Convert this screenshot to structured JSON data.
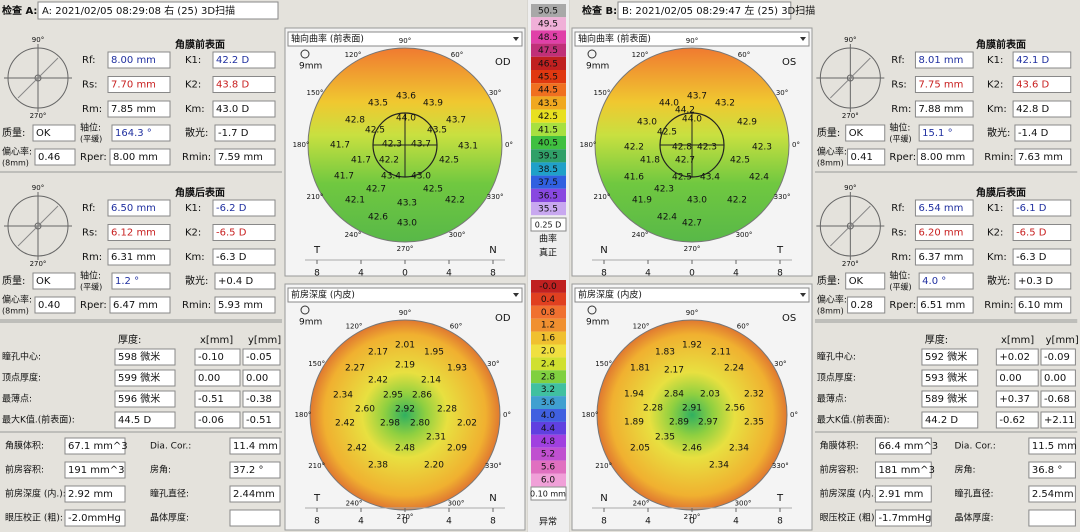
{
  "labels": {
    "rf": "Rf:",
    "rs": "Rs:",
    "rm": "Rm:",
    "k1": "K1:",
    "k2": "K2:",
    "km": "Km:",
    "quality": "质量:",
    "axis": "轴位:",
    "flat": "(平缓)",
    "astig": "散光:",
    "ecc": "偏心率:",
    "ecc_mm": "(8mm)",
    "rper": "Rper:",
    "rmin": "Rmin:",
    "front": "角膜前表面",
    "back": "角膜后表面",
    "thickness": "厚度:",
    "x": "x[mm]",
    "y": "y[mm]",
    "rows": [
      "瞳孔中心:",
      "顶点厚度:",
      "最薄点:",
      "最大K值.(前表面):"
    ],
    "volume": "角膜体积:",
    "dia": "Dia. Cor.:",
    "acv": "前房容积:",
    "angle": "房角:",
    "acd": "前房深度 (内.):",
    "pupil": "瞳孔直径:",
    "iop": "眼压校正 (粗):",
    "lens": "晶体厚度:",
    "map1": "轴向曲率 (前表面)",
    "map2": "前房深度 (内皮)",
    "zoom": "9mm",
    "t": "T",
    "n": "N",
    "scale": [
      "8",
      "4",
      "0",
      "4",
      "8"
    ],
    "ring": [
      "90°",
      "60°",
      "30°",
      "0°",
      "330°",
      "300°",
      "270°",
      "240°",
      "210°",
      "180°",
      "150°",
      "120°"
    ]
  },
  "scale": {
    "curvature": [
      "50.5",
      "49.5",
      "48.5",
      "47.5",
      "46.5",
      "45.5",
      "44.5",
      "43.5",
      "42.5",
      "41.5",
      "40.5",
      "39.5",
      "38.5",
      "37.5",
      "36.5",
      "35.5"
    ],
    "curvature_colors": [
      "#a8a8a8",
      "#f0b0d8",
      "#e040a8",
      "#c03078",
      "#c02020",
      "#e03810",
      "#f07020",
      "#f0a820",
      "#e8e020",
      "#a8e040",
      "#40c040",
      "#30a068",
      "#20a0c8",
      "#3060e0",
      "#8848e0",
      "#c8a8f0"
    ],
    "curvature_step": "0.25 D",
    "curvature_label": "曲率",
    "curvature_mode": "真正",
    "depth": [
      "-0.0",
      "0.4",
      "0.8",
      "1.2",
      "1.6",
      "2.0",
      "2.4",
      "2.8",
      "3.2",
      "3.6",
      "4.0",
      "4.4",
      "4.8",
      "5.2",
      "5.6",
      "6.0"
    ],
    "depth_colors": [
      "#c02020",
      "#e04020",
      "#f07030",
      "#f09030",
      "#f0c030",
      "#f0e040",
      "#d0e030",
      "#80d040",
      "#40c0a0",
      "#40a0d0",
      "#4060e0",
      "#6040e0",
      "#a040e0",
      "#c050d0",
      "#e070c0",
      "#f0a0d8"
    ],
    "depth_step": "0.10 mm",
    "depth_label": "异常"
  },
  "eyes": [
    {
      "exam": "检查 A:",
      "header": "A: 2021/02/05  08:29:08  右  (25) 3D扫描",
      "eye": "OD",
      "front": {
        "rf": "8.00 mm",
        "k1": "42.2 D",
        "rs": "7.70 mm",
        "k2": "43.8 D",
        "rm": "7.85 mm",
        "km": "43.0 D",
        "quality": "OK",
        "axis": "164.3 °",
        "astig": "-1.7 D",
        "ecc": "0.46",
        "rper": "8.00 mm",
        "rmin": "7.59 mm"
      },
      "back": {
        "rf": "6.50 mm",
        "k1": "-6.2 D",
        "rs": "6.12 mm",
        "k2": "-6.5 D",
        "rm": "6.31 mm",
        "km": "-6.3 D",
        "quality": "OK",
        "axis": "1.2 °",
        "astig": "+0.4 D",
        "ecc": "0.40",
        "rper": "6.47 mm",
        "rmin": "5.93 mm"
      },
      "table": [
        [
          "598 微米",
          "-0.10",
          "-0.05"
        ],
        [
          "599 微米",
          "0.00",
          "0.00"
        ],
        [
          "596 微米",
          "-0.51",
          "-0.38"
        ],
        [
          "44.5 D",
          "-0.06",
          "-0.51"
        ]
      ],
      "volume": "67.1 mm^3",
      "dia": "11.4 mm",
      "acv": "191 mm^3",
      "angle": "37.2 °",
      "acd": "2.92 mm",
      "pupil": "2.44mm",
      "iop": "-2.0mmHg",
      "curv": [
        "43.6",
        "43.5",
        "43.9",
        "44.0",
        "42.8",
        "43.7",
        "42.5",
        "43.5",
        "41.7",
        "42.3",
        "43.7",
        "43.1",
        "41.7",
        "42.2",
        "42.5",
        "41.7",
        "43.4",
        "43.0",
        "42.7",
        "42.5",
        "42.1",
        "43.3",
        "42.2",
        "42.6",
        "43.0"
      ],
      "depth": [
        "2.01",
        "2.17",
        "1.95",
        "2.27",
        "2.19",
        "1.93",
        "2.42",
        "2.14",
        "2.34",
        "2.95",
        "2.86",
        "2.60",
        "2.92",
        "2.28",
        "2.42",
        "2.98",
        "2.80",
        "2.02",
        "2.31",
        "2.42",
        "2.48",
        "2.09",
        "2.38",
        "2.20"
      ]
    },
    {
      "exam": "检查 B:",
      "header": "B: 2021/02/05  08:29:47  左  (25) 3D扫描",
      "eye": "OS",
      "front": {
        "rf": "8.01 mm",
        "k1": "42.1 D",
        "rs": "7.75 mm",
        "k2": "43.6 D",
        "rm": "7.88 mm",
        "km": "42.8 D",
        "quality": "OK",
        "axis": "15.1 °",
        "astig": "-1.4 D",
        "ecc": "0.41",
        "rper": "8.00 mm",
        "rmin": "7.63 mm"
      },
      "back": {
        "rf": "6.54 mm",
        "k1": "-6.1 D",
        "rs": "6.20 mm",
        "k2": "-6.5 D",
        "rm": "6.37 mm",
        "km": "-6.3 D",
        "quality": "OK",
        "axis": "4.0 °",
        "astig": "+0.3 D",
        "ecc": "0.28",
        "rper": "6.51 mm",
        "rmin": "6.10 mm"
      },
      "table": [
        [
          "592 微米",
          "+0.02",
          "-0.09"
        ],
        [
          "593 微米",
          "0.00",
          "0.00"
        ],
        [
          "589 微米",
          "+0.37",
          "-0.68"
        ],
        [
          "44.2 D",
          "-0.62",
          "+2.11"
        ]
      ],
      "volume": "66.4 mm^3",
      "dia": "11.5 mm",
      "acv": "181 mm^3",
      "angle": "36.8 °",
      "acd": "2.91 mm",
      "pupil": "2.54mm",
      "iop": "-1.7mmHg",
      "curv": [
        "43.7",
        "44.0",
        "44.2",
        "43.2",
        "43.0",
        "44.0",
        "42.9",
        "42.5",
        "42.2",
        "42.8",
        "42.3",
        "42.3",
        "41.8",
        "42.7",
        "42.5",
        "41.6",
        "42.5",
        "43.4",
        "42.4",
        "42.3",
        "41.9",
        "43.0",
        "42.2",
        "42.4",
        "42.7"
      ],
      "depth": [
        "1.92",
        "1.83",
        "2.11",
        "1.81",
        "2.17",
        "2.24",
        "1.94",
        "2.84",
        "2.03",
        "2.32",
        "2.28",
        "2.91",
        "2.56",
        "1.89",
        "2.89",
        "2.97",
        "2.35",
        "2.35",
        "2.05",
        "2.46",
        "2.34",
        "2.34"
      ]
    }
  ]
}
